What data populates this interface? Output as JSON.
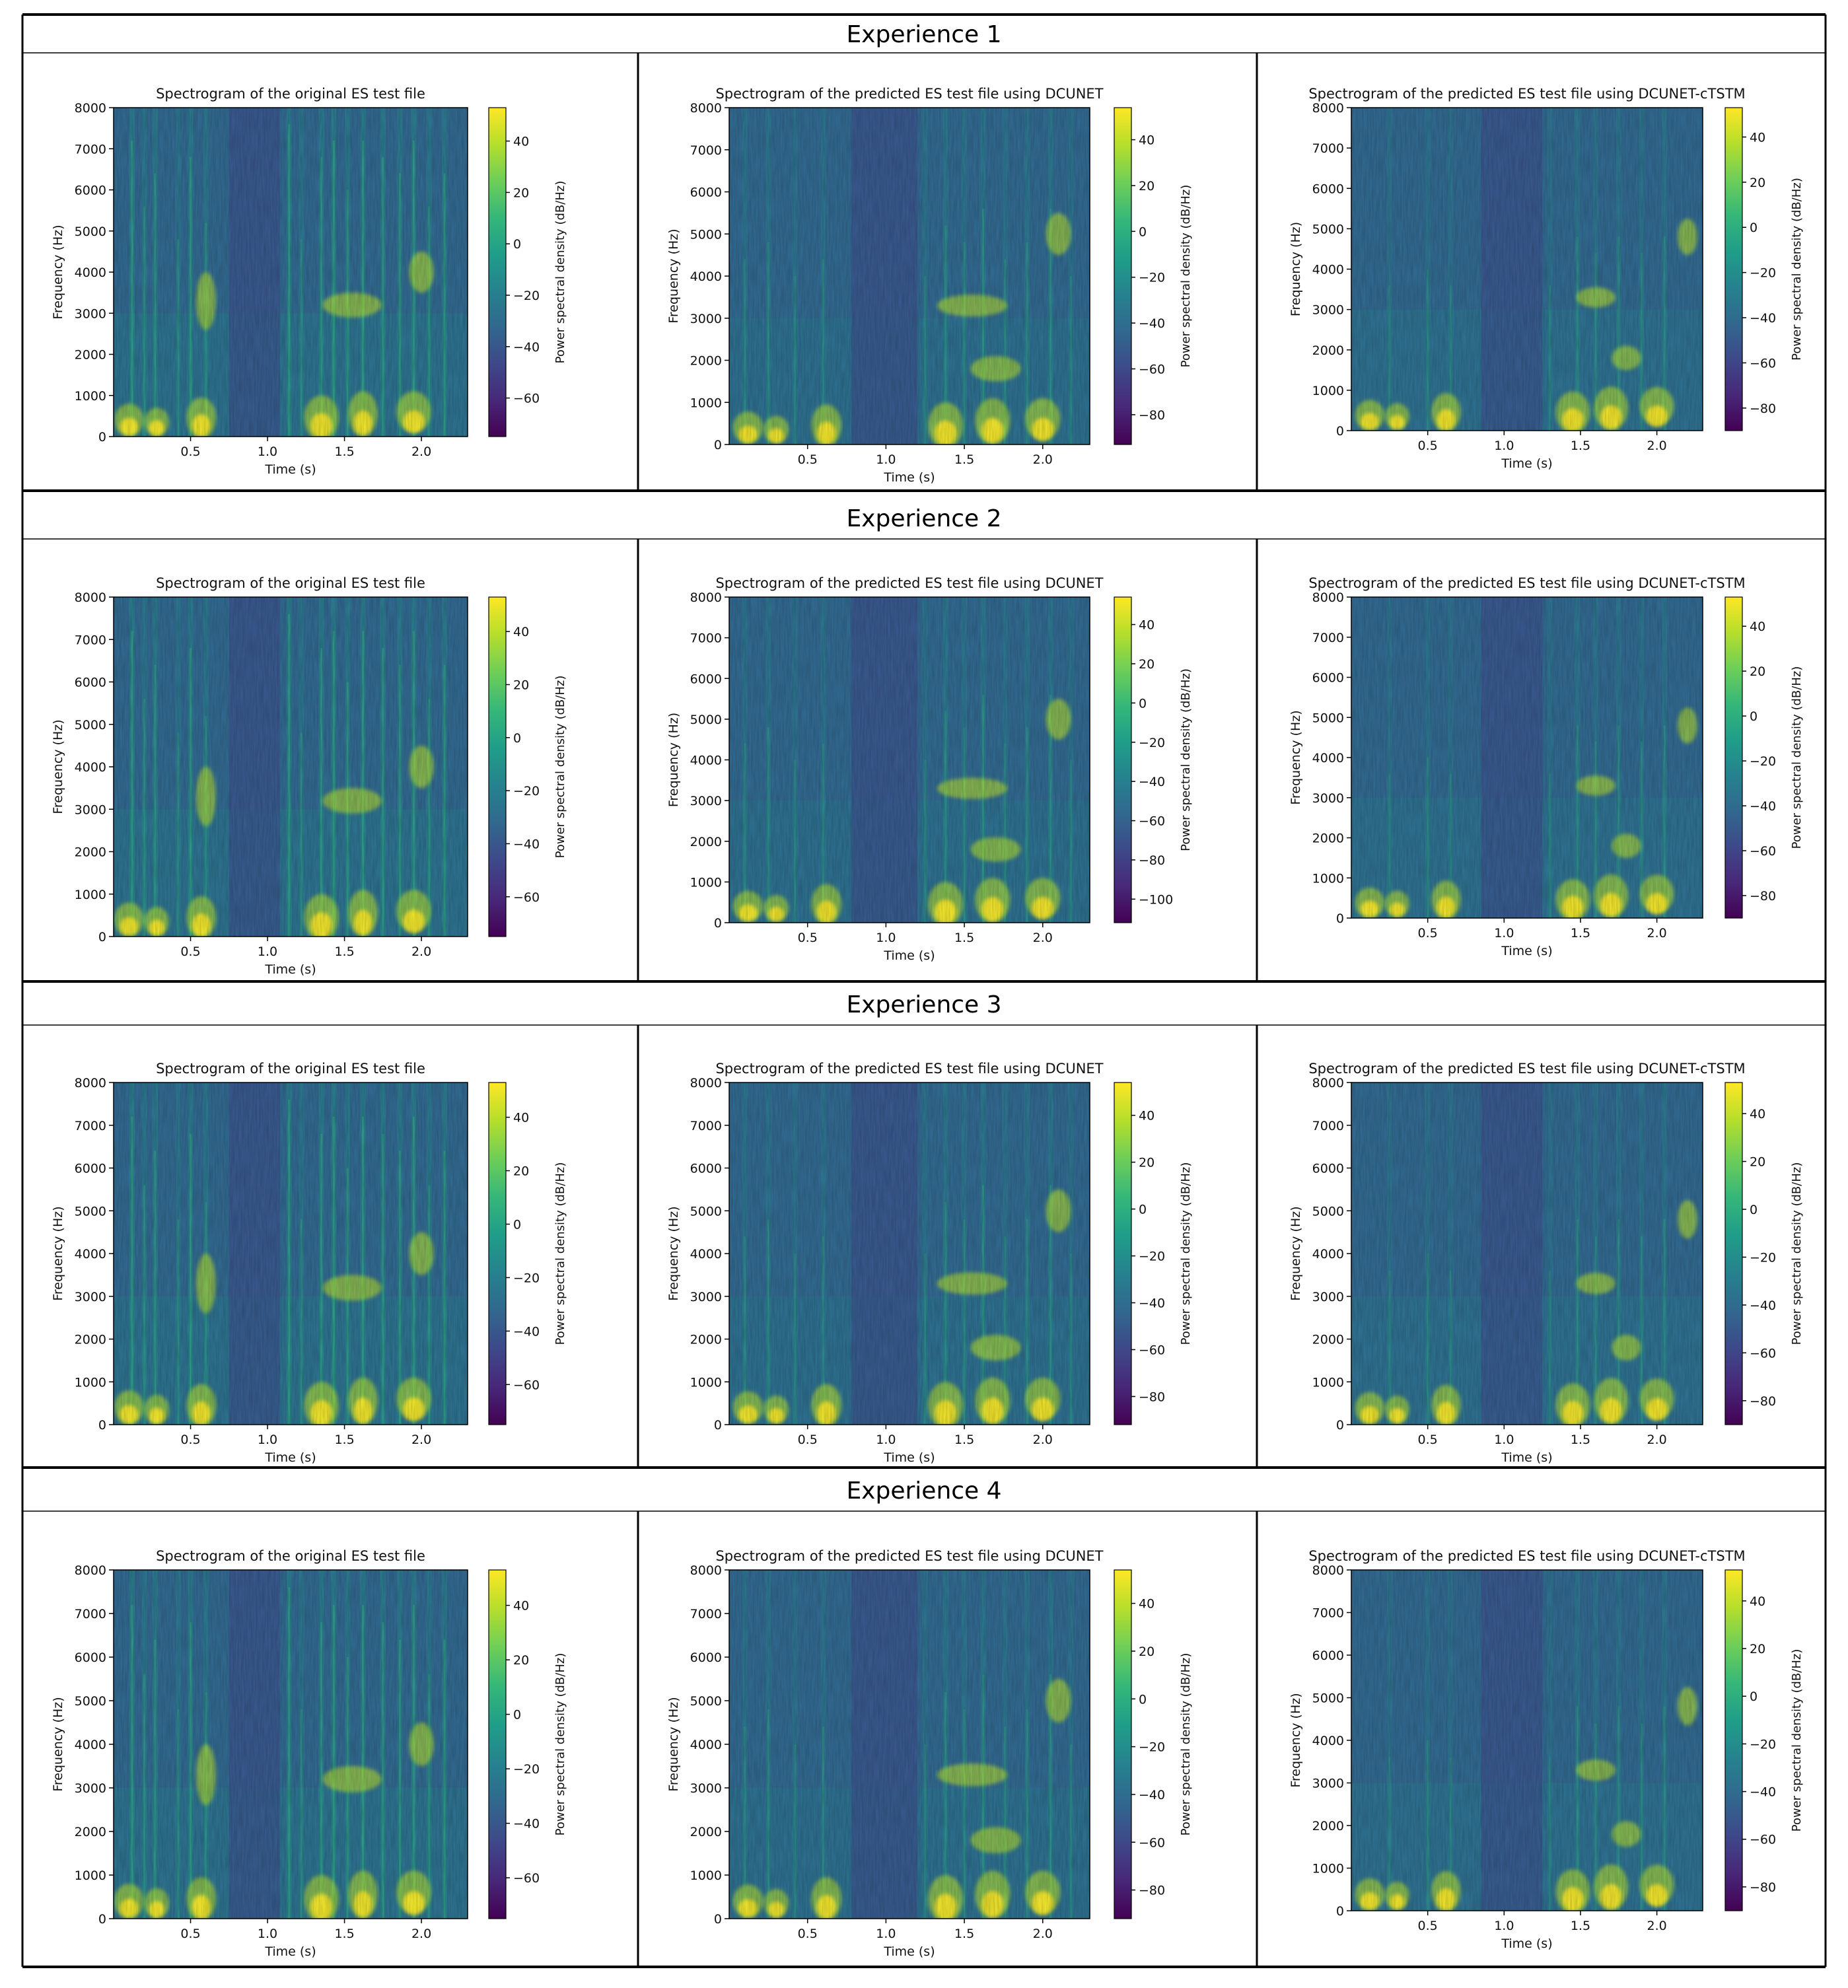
{
  "experiences": [
    {
      "title": "Experience 1",
      "panels": [
        {
          "title": "Spectrogram of the original ES test file",
          "cbar_ticks": [
            40,
            20,
            0,
            -20,
            -40,
            -60
          ],
          "cbar_range": [
            -75,
            53
          ]
        },
        {
          "title": "Spectrogram of the predicted ES test file using DCUNET",
          "cbar_ticks": [
            40,
            20,
            0,
            -20,
            -40,
            -60,
            -80
          ],
          "cbar_range": [
            -93,
            54
          ]
        },
        {
          "title": "Spectrogram of the predicted ES test file using DCUNET-cTSTM",
          "cbar_ticks": [
            40,
            20,
            0,
            -20,
            -40,
            -60,
            -80
          ],
          "cbar_range": [
            -90,
            53
          ]
        }
      ]
    },
    {
      "title": "Experience 2",
      "panels": [
        {
          "title": "Spectrogram of the original ES test file",
          "cbar_ticks": [
            40,
            20,
            0,
            -20,
            -40,
            -60
          ],
          "cbar_range": [
            -75,
            53
          ]
        },
        {
          "title": "Spectrogram of the predicted ES test file using DCUNET",
          "cbar_ticks": [
            40,
            20,
            0,
            -20,
            -40,
            -60,
            -80,
            -100
          ],
          "cbar_range": [
            -112,
            54
          ]
        },
        {
          "title": "Spectrogram of the predicted ES test file using DCUNET-cTSTM",
          "cbar_ticks": [
            40,
            20,
            0,
            -20,
            -40,
            -60,
            -80
          ],
          "cbar_range": [
            -90,
            53
          ]
        }
      ]
    },
    {
      "title": "Experience 3",
      "panels": [
        {
          "title": "Spectrogram of the original ES test file",
          "cbar_ticks": [
            40,
            20,
            0,
            -20,
            -40,
            -60
          ],
          "cbar_range": [
            -75,
            53
          ]
        },
        {
          "title": "Spectrogram of the predicted ES test file using DCUNET",
          "cbar_ticks": [
            40,
            20,
            0,
            -20,
            -40,
            -60,
            -80
          ],
          "cbar_range": [
            -92,
            54
          ]
        },
        {
          "title": "Spectrogram of the predicted ES test file using DCUNET-cTSTM",
          "cbar_ticks": [
            40,
            20,
            0,
            -20,
            -40,
            -60,
            -80
          ],
          "cbar_range": [
            -90,
            53
          ]
        }
      ]
    },
    {
      "title": "Experience 4",
      "panels": [
        {
          "title": "Spectrogram of the original ES test file",
          "cbar_ticks": [
            40,
            20,
            0,
            -20,
            -40,
            -60
          ],
          "cbar_range": [
            -75,
            53
          ]
        },
        {
          "title": "Spectrogram of the predicted ES test file using DCUNET",
          "cbar_ticks": [
            40,
            20,
            0,
            -20,
            -40,
            -60,
            -80
          ],
          "cbar_range": [
            -92,
            54
          ]
        },
        {
          "title": "Spectrogram of the predicted ES test file using DCUNET-cTSTM",
          "cbar_ticks": [
            40,
            20,
            0,
            -20,
            -40,
            -60,
            -80
          ],
          "cbar_range": [
            -90,
            53
          ]
        }
      ]
    }
  ],
  "chart_data": {
    "type": "heatmap",
    "xlabel": "Time (s)",
    "ylabel": "Frequency (Hz)",
    "colorbar_label": "Power spectral density (dB/Hz)",
    "x_ticks": [
      "0.5",
      "1.0",
      "1.5",
      "2.0"
    ],
    "y_ticks": [
      "0",
      "1000",
      "2000",
      "3000",
      "4000",
      "5000",
      "6000",
      "7000",
      "8000"
    ],
    "xlim": [
      0,
      2.3
    ],
    "ylim": [
      0,
      8000
    ],
    "colormap": "viridis",
    "grid": false
  },
  "colors": {
    "viridis": [
      "#440154",
      "#482878",
      "#3e4989",
      "#31688e",
      "#26828e",
      "#1f9e89",
      "#35b779",
      "#6ece58",
      "#b5de2b",
      "#fde725"
    ],
    "border": "#000000"
  }
}
